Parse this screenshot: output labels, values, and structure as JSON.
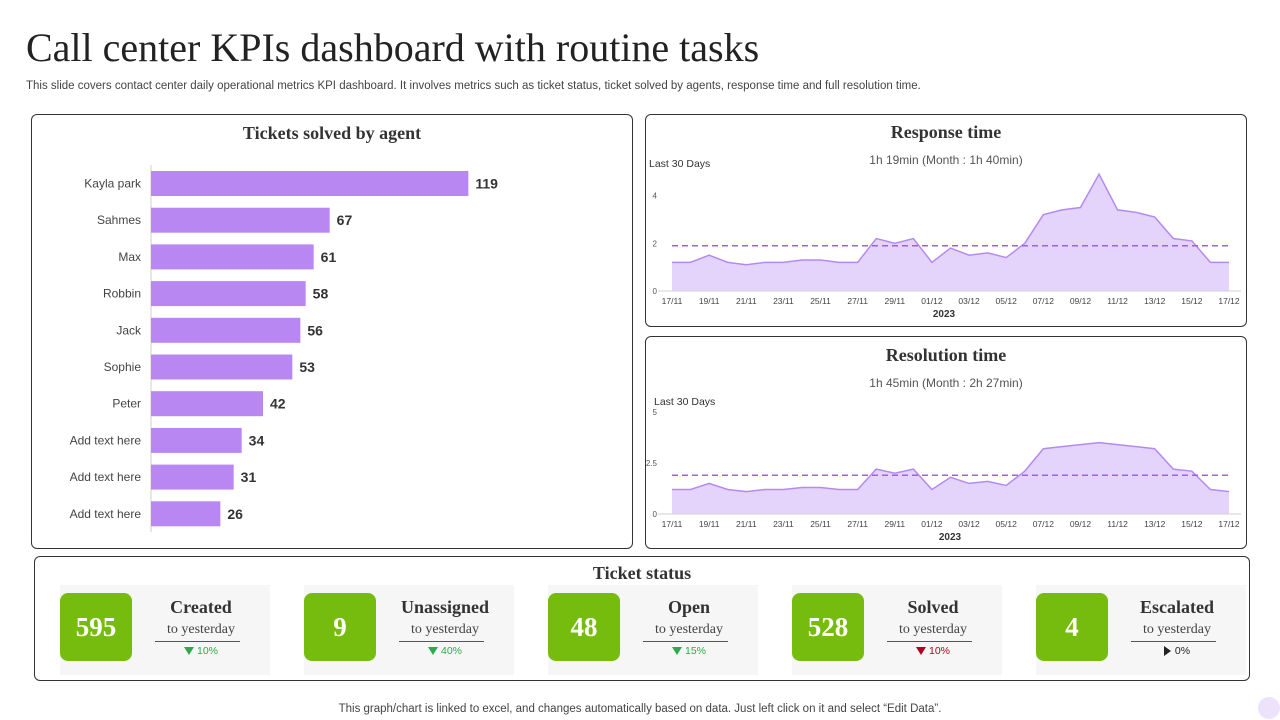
{
  "page": {
    "title": "Call center KPIs dashboard with routine tasks",
    "subtitle": "This slide covers contact center daily operational metrics KPI dashboard. It involves metrics such as ticket status, ticket solved by agents, response time and full resolution time.",
    "footer": "This graph/chart is linked to excel,  and changes automatically based on data. Just left click on it and select “Edit Data”."
  },
  "colors": {
    "bar": "#b987f2",
    "area_fill": "#e4d3fb",
    "area_line": "#b58aef",
    "avg_line": "#9f5fe6",
    "kpi_green": "#76bc0f",
    "down_green": "#2eaa4a",
    "down_red": "#b00020"
  },
  "tickets_panel": {
    "title": "Tickets solved by agent"
  },
  "response_panel": {
    "title": "Response time",
    "subtitle": "1h 19min (Month :  1h 40min)"
  },
  "resolution_panel": {
    "title": "Resolution time",
    "subtitle": "1h 45min (Month : 2h 27min)"
  },
  "status_panel": {
    "title": "Ticket status",
    "kpis": [
      {
        "value": "595",
        "label": "Created",
        "sub": "to yesterday",
        "change": "10%",
        "direction": "down",
        "color": "green"
      },
      {
        "value": "9",
        "label": "Unassigned",
        "sub": "to yesterday",
        "change": "40%",
        "direction": "down",
        "color": "green"
      },
      {
        "value": "48",
        "label": "Open",
        "sub": "to yesterday",
        "change": "15%",
        "direction": "down",
        "color": "green"
      },
      {
        "value": "528",
        "label": "Solved",
        "sub": "to yesterday",
        "change": "10%",
        "direction": "down",
        "color": "red"
      },
      {
        "value": "4",
        "label": "Escalated",
        "sub": "to yesterday",
        "change": "0%",
        "direction": "flat",
        "color": "black"
      }
    ]
  },
  "chart_data": [
    {
      "type": "bar",
      "orientation": "horizontal",
      "title": "Tickets solved by agent",
      "categories": [
        "Kayla park",
        "Sahmes",
        "Max",
        "Robbin",
        "Jack",
        "Sophie",
        "Peter",
        "Add text here",
        "Add text here",
        "Add text here"
      ],
      "values": [
        119,
        67,
        61,
        58,
        56,
        53,
        42,
        34,
        31,
        26
      ],
      "xlim": [
        0,
        150
      ],
      "data_labels": true,
      "grid": false
    },
    {
      "type": "area",
      "title": "Response time",
      "annotation": "Last 30 Days",
      "xlabel": "2023",
      "x": [
        "17/11",
        "18/11",
        "19/11",
        "20/11",
        "21/11",
        "22/11",
        "23/11",
        "24/11",
        "25/11",
        "26/11",
        "27/11",
        "28/11",
        "29/11",
        "30/11",
        "01/12",
        "02/12",
        "03/12",
        "04/12",
        "05/12",
        "06/12",
        "07/12",
        "08/12",
        "09/12",
        "10/12",
        "11/12",
        "12/12",
        "13/12",
        "14/12",
        "15/12",
        "16/12",
        "17/12"
      ],
      "tick_labels": [
        "17/11",
        "19/11",
        "21/11",
        "23/11",
        "25/11",
        "27/11",
        "29/11",
        "01/12",
        "03/12",
        "05/12",
        "07/12",
        "09/12",
        "11/12",
        "13/12",
        "15/12",
        "17/12"
      ],
      "values": [
        1.2,
        1.2,
        1.5,
        1.2,
        1.1,
        1.2,
        1.2,
        1.3,
        1.3,
        1.2,
        1.2,
        2.2,
        2.0,
        2.2,
        1.2,
        1.8,
        1.5,
        1.6,
        1.4,
        2.0,
        3.2,
        3.4,
        3.5,
        4.9,
        3.4,
        3.3,
        3.1,
        2.2,
        2.1,
        1.2,
        1.2
      ],
      "average": 1.9,
      "yticks": [
        0,
        2,
        4
      ],
      "ylim": [
        0,
        5.2
      ],
      "legend": "none"
    },
    {
      "type": "area",
      "title": "Resolution time",
      "annotation": "Last 30 Days",
      "xlabel": "2023",
      "x": [
        "17/11",
        "18/11",
        "19/11",
        "20/11",
        "21/11",
        "22/11",
        "23/11",
        "24/11",
        "25/11",
        "26/11",
        "27/11",
        "28/11",
        "29/11",
        "30/11",
        "01/12",
        "02/12",
        "03/12",
        "04/12",
        "05/12",
        "06/12",
        "07/12",
        "08/12",
        "09/12",
        "10/12",
        "11/12",
        "12/12",
        "13/12",
        "14/12",
        "15/12",
        "16/12",
        "17/12"
      ],
      "tick_labels": [
        "17/11",
        "19/11",
        "21/11",
        "23/11",
        "25/11",
        "27/11",
        "29/11",
        "01/12",
        "03/12",
        "05/12",
        "07/12",
        "09/12",
        "11/12",
        "13/12",
        "15/12",
        "17/12"
      ],
      "values": [
        1.2,
        1.2,
        1.5,
        1.2,
        1.1,
        1.2,
        1.2,
        1.3,
        1.3,
        1.2,
        1.2,
        2.2,
        2.0,
        2.2,
        1.2,
        1.8,
        1.5,
        1.6,
        1.4,
        2.1,
        3.2,
        3.3,
        3.4,
        3.5,
        3.4,
        3.3,
        3.2,
        2.2,
        2.1,
        1.2,
        1.1
      ],
      "average": 1.9,
      "yticks": [
        0,
        2.5,
        5
      ],
      "ylim": [
        0,
        5
      ],
      "legend": "none"
    }
  ]
}
